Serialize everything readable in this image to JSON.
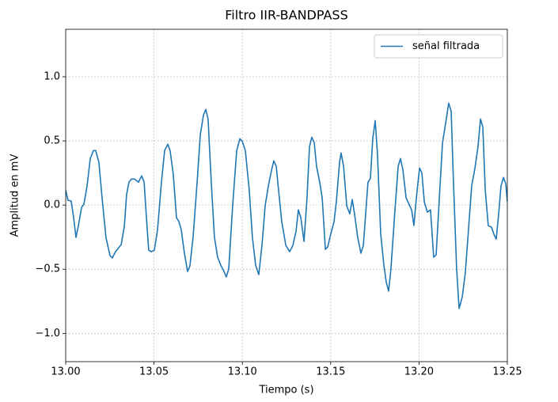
{
  "chart_data": {
    "type": "line",
    "title": "Filtro IIR-BANDPASS",
    "x_label": "Tiempo (s)",
    "y_label": "Amplitud en mV",
    "xlim": [
      13.0,
      13.25
    ],
    "ylim": [
      -1.22,
      1.37
    ],
    "xticks": [
      {
        "value": 13.0,
        "label": "13.00"
      },
      {
        "value": 13.05,
        "label": "13.05"
      },
      {
        "value": 13.1,
        "label": "13.10"
      },
      {
        "value": 13.15,
        "label": "13.15"
      },
      {
        "value": 13.2,
        "label": "13.20"
      },
      {
        "value": 13.25,
        "label": "13.25"
      }
    ],
    "yticks": [
      {
        "value": -1,
        "label": "−1.0"
      },
      {
        "value": -0.5,
        "label": "−0.5"
      },
      {
        "value": 0,
        "label": "0.0"
      },
      0.5,
      {
        "value": 1,
        "label": "1.0"
      }
    ],
    "grid": true,
    "legend": "upper right",
    "series": [
      {
        "name": "señal filtrada",
        "color": "#1f77b4",
        "x": [
          13.0,
          13.0013,
          13.0031,
          13.0045,
          13.0058,
          13.0072,
          13.009,
          13.0103,
          13.0121,
          13.0139,
          13.0157,
          13.017,
          13.0188,
          13.0206,
          13.0228,
          13.0251,
          13.0264,
          13.0282,
          13.03,
          13.0314,
          13.0332,
          13.0345,
          13.0358,
          13.0372,
          13.039,
          13.0412,
          13.043,
          13.0444,
          13.0457,
          13.047,
          13.0484,
          13.0502,
          13.052,
          13.0542,
          13.056,
          13.0578,
          13.0591,
          13.0609,
          13.0627,
          13.0641,
          13.0654,
          13.0672,
          13.069,
          13.0703,
          13.0721,
          13.0744,
          13.0762,
          13.078,
          13.0793,
          13.0806,
          13.0824,
          13.0842,
          13.086,
          13.0878,
          13.0896,
          13.0909,
          13.0923,
          13.0945,
          13.0968,
          13.0986,
          13.0999,
          13.1017,
          13.1039,
          13.1057,
          13.1075,
          13.1093,
          13.1111,
          13.1129,
          13.1147,
          13.1165,
          13.1178,
          13.1192,
          13.1205,
          13.1223,
          13.1246,
          13.1268,
          13.1286,
          13.1304,
          13.1317,
          13.1331,
          13.1349,
          13.1366,
          13.138,
          13.1393,
          13.1407,
          13.142,
          13.1438,
          13.1452,
          13.147,
          13.1483,
          13.1501,
          13.1519,
          13.1532,
          13.155,
          13.1559,
          13.1573,
          13.1591,
          13.1608,
          13.1622,
          13.1635,
          13.1653,
          13.1671,
          13.1685,
          13.1698,
          13.1711,
          13.1725,
          13.1738,
          13.1752,
          13.1765,
          13.1783,
          13.1801,
          13.1815,
          13.1828,
          13.1841,
          13.1864,
          13.1882,
          13.1895,
          13.1909,
          13.1927,
          13.1944,
          13.1958,
          13.1971,
          13.1985,
          13.2003,
          13.2016,
          13.203,
          13.2047,
          13.2065,
          13.2083,
          13.2097,
          13.2115,
          13.2133,
          13.2151,
          13.2168,
          13.2182,
          13.2195,
          13.2213,
          13.2227,
          13.2245,
          13.2262,
          13.228,
          13.2298,
          13.2316,
          13.2334,
          13.2348,
          13.2361,
          13.2375,
          13.2392,
          13.241,
          13.2424,
          13.2437,
          13.2451,
          13.2464,
          13.2478,
          13.2491,
          13.25
        ],
        "values": [
          0.117,
          0.037,
          0.031,
          -0.098,
          -0.252,
          -0.16,
          -0.018,
          0.006,
          0.148,
          0.363,
          0.425,
          0.425,
          0.332,
          0.055,
          -0.252,
          -0.394,
          -0.412,
          -0.363,
          -0.332,
          -0.308,
          -0.166,
          0.086,
          0.178,
          0.203,
          0.203,
          0.178,
          0.228,
          0.178,
          -0.098,
          -0.351,
          -0.363,
          -0.351,
          -0.191,
          0.178,
          0.425,
          0.474,
          0.425,
          0.24,
          -0.098,
          -0.129,
          -0.191,
          -0.375,
          -0.517,
          -0.474,
          -0.252,
          0.178,
          0.548,
          0.702,
          0.745,
          0.671,
          0.178,
          -0.252,
          -0.406,
          -0.468,
          -0.517,
          -0.56,
          -0.498,
          -0.006,
          0.425,
          0.517,
          0.498,
          0.425,
          0.117,
          -0.252,
          -0.468,
          -0.542,
          -0.314,
          -0.006,
          0.148,
          0.271,
          0.345,
          0.302,
          0.117,
          -0.129,
          -0.314,
          -0.363,
          -0.314,
          -0.203,
          -0.037,
          -0.098,
          -0.283,
          0.055,
          0.455,
          0.529,
          0.486,
          0.302,
          0.178,
          0.055,
          -0.345,
          -0.326,
          -0.222,
          -0.129,
          0.025,
          0.332,
          0.406,
          0.302,
          -0.006,
          -0.068,
          0.043,
          -0.068,
          -0.252,
          -0.375,
          -0.314,
          -0.068,
          0.178,
          0.209,
          0.517,
          0.658,
          0.394,
          -0.222,
          -0.468,
          -0.603,
          -0.671,
          -0.498,
          -0.037,
          0.302,
          0.363,
          0.271,
          0.055,
          0.006,
          -0.037,
          -0.16,
          0.055,
          0.289,
          0.252,
          0.025,
          -0.055,
          -0.037,
          -0.406,
          -0.388,
          0.055,
          0.486,
          0.64,
          0.794,
          0.732,
          0.178,
          -0.498,
          -0.806,
          -0.714,
          -0.529,
          -0.191,
          0.148,
          0.283,
          0.455,
          0.671,
          0.609,
          0.117,
          -0.16,
          -0.172,
          -0.228,
          -0.265,
          -0.068,
          0.148,
          0.215,
          0.166,
          0.025
        ]
      }
    ]
  }
}
